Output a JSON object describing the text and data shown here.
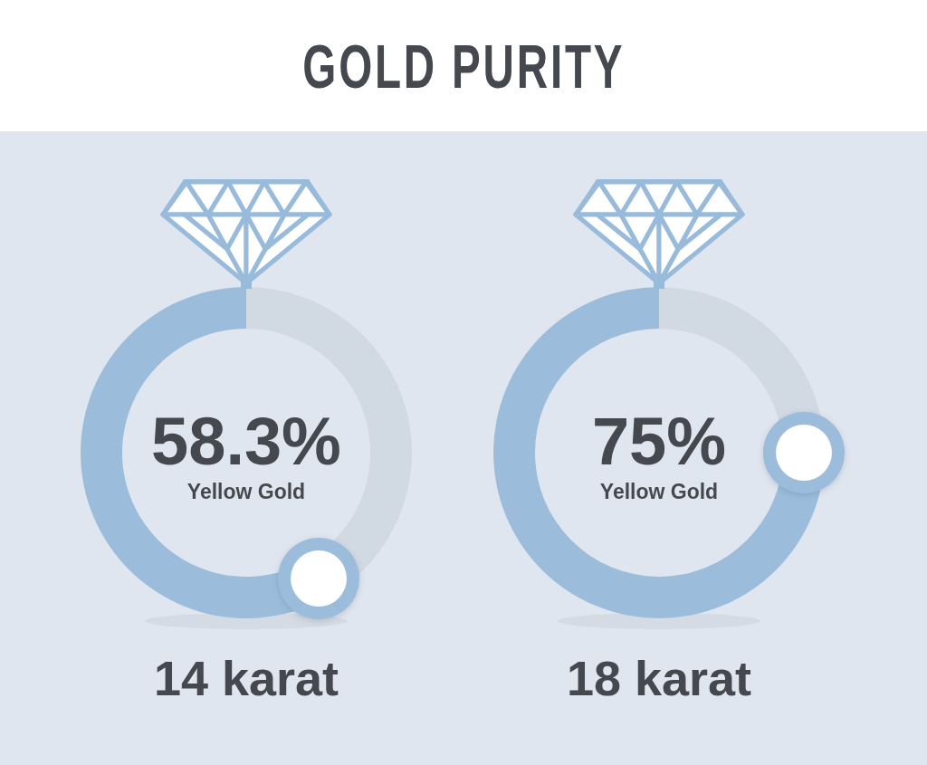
{
  "chart_data": [
    {
      "type": "donut",
      "title": "GOLD PURITY",
      "categories": [
        "Yellow Gold",
        null
      ],
      "values": [
        58.3,
        41.7
      ],
      "colors": [
        "#9bbddb",
        "#d1d9e3"
      ],
      "value_labels": [
        "58.3%",
        null
      ],
      "annotations": [
        "14 karat"
      ]
    },
    {
      "type": "donut",
      "categories": [
        "Yellow Gold",
        null
      ],
      "values": [
        75,
        25
      ],
      "colors": [
        "#9bbddb",
        "#d1d9e3"
      ],
      "value_labels": [
        "75%",
        null
      ],
      "annotations": [
        "18 karat"
      ]
    }
  ]
}
